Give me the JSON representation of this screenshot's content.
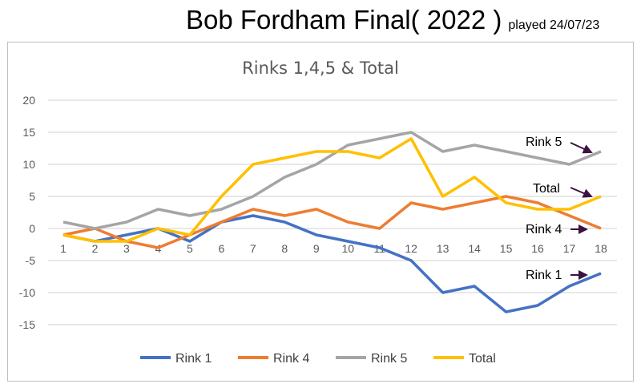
{
  "header": {
    "title": "Bob Fordham Final( 2022 )",
    "played": "played 24/07/23"
  },
  "chart_data": {
    "type": "line",
    "title": "Rinks 1,4,5 & Total",
    "x": [
      1,
      2,
      3,
      4,
      5,
      6,
      7,
      8,
      9,
      10,
      11,
      12,
      13,
      14,
      15,
      16,
      17,
      18
    ],
    "ylim": [
      -15,
      20
    ],
    "yticks": [
      20,
      15,
      10,
      5,
      0,
      -5,
      -10,
      -15
    ],
    "grid": true,
    "legend_position": "bottom",
    "series": [
      {
        "name": "Rink 1",
        "color": "#4472c4",
        "values": [
          -1,
          -2,
          -1,
          0,
          -2,
          1,
          2,
          1,
          -1,
          -2,
          -3,
          -5,
          -10,
          -9,
          -13,
          -12,
          -9,
          -7
        ]
      },
      {
        "name": "Rink 4",
        "color": "#ed7d31",
        "values": [
          -1,
          0,
          -2,
          -3,
          -1,
          1,
          3,
          2,
          3,
          1,
          0,
          4,
          3,
          4,
          5,
          4,
          2,
          0
        ]
      },
      {
        "name": "Rink 5",
        "color": "#a5a5a5",
        "values": [
          1,
          0,
          1,
          3,
          2,
          3,
          5,
          8,
          10,
          13,
          14,
          15,
          12,
          13,
          12,
          11,
          10,
          12
        ]
      },
      {
        "name": "Total",
        "color": "#ffc000",
        "values": [
          -1,
          -2,
          -2,
          0,
          -1,
          5,
          10,
          11,
          12,
          12,
          11,
          14,
          5,
          8,
          4,
          3,
          3,
          5
        ]
      }
    ],
    "annotations": [
      "Rink 5",
      "Total",
      "Rink 4",
      "Rink 1"
    ]
  }
}
